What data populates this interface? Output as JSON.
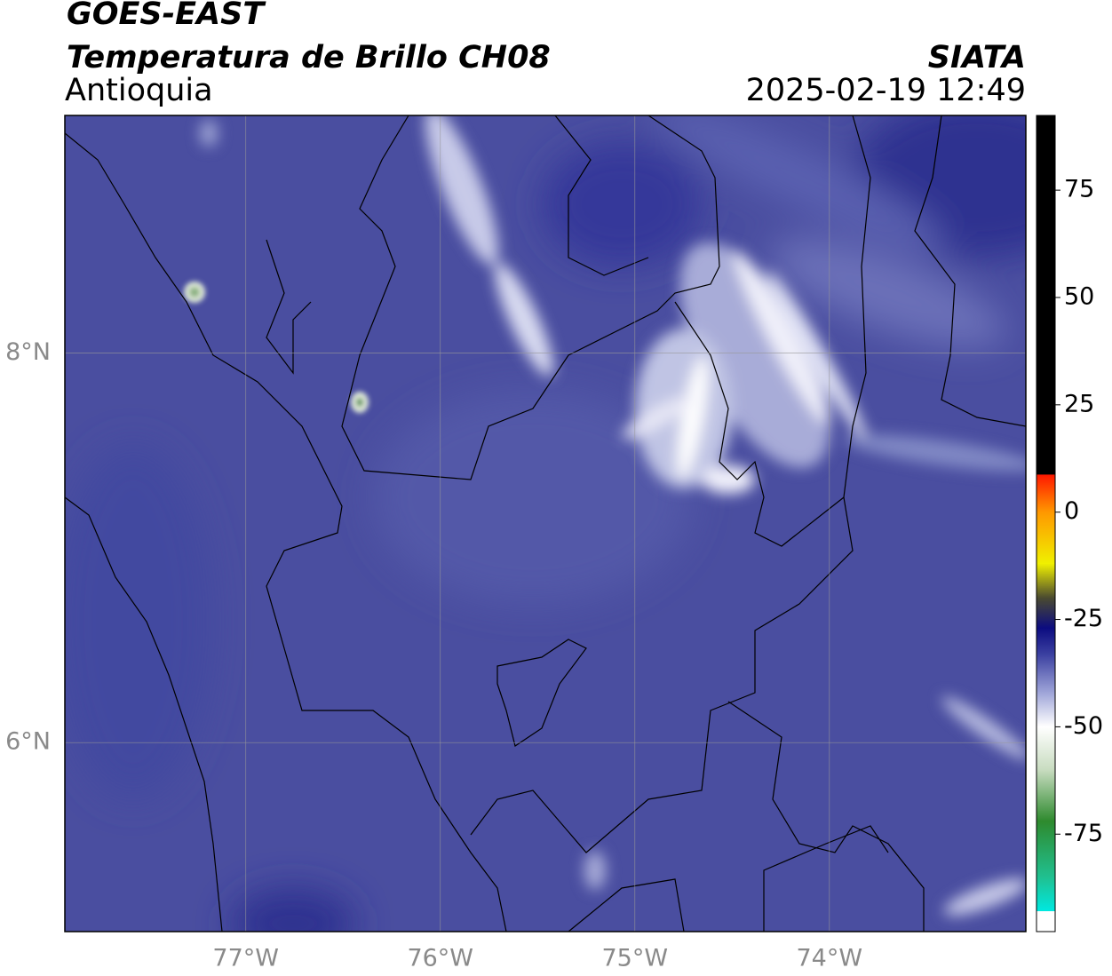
{
  "chart_data": {
    "type": "map",
    "title": "GOES-EAST",
    "subtitle": "Temperatura de Brillo CH08",
    "region": "Antioquia",
    "source": "SIATA",
    "datetime": "2025-02-19 12:49",
    "xlim": [
      -77.93,
      -72.99
    ],
    "ylim": [
      5.03,
      9.22
    ],
    "xticks": [
      {
        "value": -77,
        "label": "77°W"
      },
      {
        "value": -76,
        "label": "76°W"
      },
      {
        "value": -75,
        "label": "75°W"
      },
      {
        "value": -74,
        "label": "74°W"
      }
    ],
    "yticks": [
      {
        "value": 8,
        "label": "8°N"
      },
      {
        "value": 6,
        "label": "6°N"
      }
    ],
    "grid": true,
    "colorbar": {
      "lim": [
        -97.7,
        92.4
      ],
      "ticks": [
        75,
        50,
        25,
        0,
        -25,
        -50,
        -75
      ],
      "colormap": [
        {
          "value": -97.7,
          "color": "#ffffff"
        },
        {
          "value": -93,
          "color": "#ffffff"
        },
        {
          "value": -92.9,
          "color": "#00e8e0"
        },
        {
          "value": -85,
          "color": "#20c090"
        },
        {
          "value": -72,
          "color": "#2e8a2e"
        },
        {
          "value": -60,
          "color": "#c8dcc0"
        },
        {
          "value": -50,
          "color": "#ffffff"
        },
        {
          "value": -42,
          "color": "#9ea4d8"
        },
        {
          "value": -33,
          "color": "#3a3fa0"
        },
        {
          "value": -27,
          "color": "#0c0c80"
        },
        {
          "value": -20,
          "color": "#4a4a30"
        },
        {
          "value": -12,
          "color": "#f0f000"
        },
        {
          "value": 0,
          "color": "#ff9800"
        },
        {
          "value": 8.7,
          "color": "#ff1800"
        },
        {
          "value": 8.8,
          "color": "#000000"
        },
        {
          "value": 92.4,
          "color": "#000000"
        }
      ]
    }
  }
}
